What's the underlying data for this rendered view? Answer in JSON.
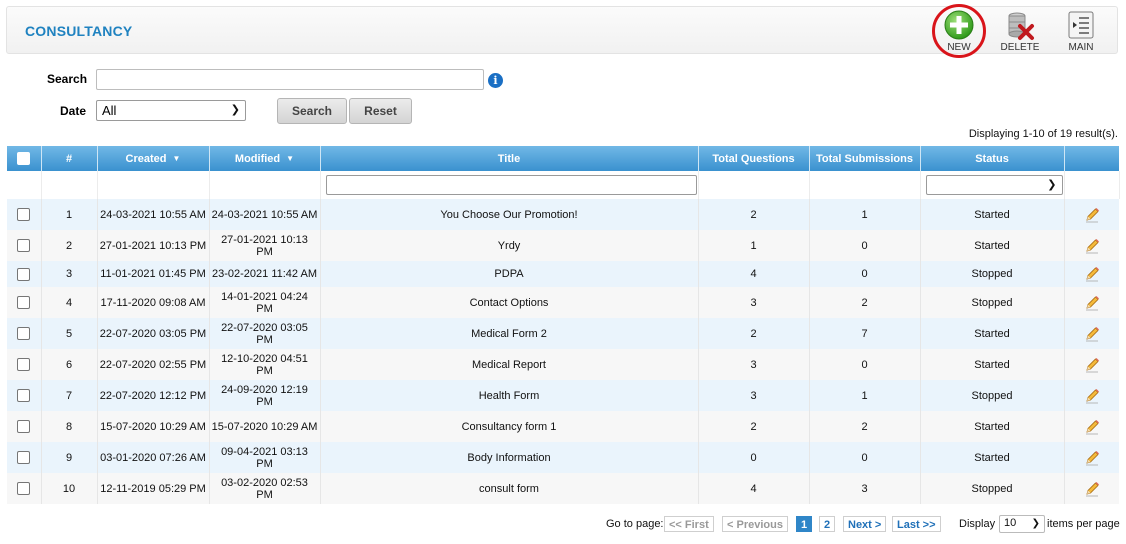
{
  "header": {
    "title": "CONSULTANCY",
    "new_label": "NEW",
    "delete_label": "DELETE",
    "main_label": "MAIN"
  },
  "search": {
    "search_label": "Search",
    "search_value": "",
    "date_label": "Date",
    "date_value": "All",
    "search_button": "Search",
    "reset_button": "Reset",
    "info_icon": "i"
  },
  "results_text": "Displaying 1-10 of 19 result(s).",
  "columns": {
    "number": "#",
    "created": "Created",
    "modified": "Modified",
    "title": "Title",
    "total_questions": "Total Questions",
    "total_submissions": "Total Submissions",
    "status": "Status"
  },
  "rows": [
    {
      "num": "1",
      "created": "24-03-2021 10:55 AM",
      "modified": "24-03-2021 10:55 AM",
      "title": "You Choose Our Promotion!",
      "questions": "2",
      "submissions": "1",
      "status": "Started"
    },
    {
      "num": "2",
      "created": "27-01-2021 10:13 PM",
      "modified": "27-01-2021 10:13 PM",
      "title": "Yrdy",
      "questions": "1",
      "submissions": "0",
      "status": "Started"
    },
    {
      "num": "3",
      "created": "11-01-2021 01:45 PM",
      "modified": "23-02-2021 11:42 AM",
      "title": "PDPA",
      "questions": "4",
      "submissions": "0",
      "status": "Stopped"
    },
    {
      "num": "4",
      "created": "17-11-2020 09:08 AM",
      "modified": "14-01-2021 04:24 PM",
      "title": "Contact Options",
      "questions": "3",
      "submissions": "2",
      "status": "Stopped"
    },
    {
      "num": "5",
      "created": "22-07-2020 03:05 PM",
      "modified": "22-07-2020 03:05 PM",
      "title": "Medical Form 2",
      "questions": "2",
      "submissions": "7",
      "status": "Started"
    },
    {
      "num": "6",
      "created": "22-07-2020 02:55 PM",
      "modified": "12-10-2020 04:51 PM",
      "title": "Medical Report",
      "questions": "3",
      "submissions": "0",
      "status": "Started"
    },
    {
      "num": "7",
      "created": "22-07-2020 12:12 PM",
      "modified": "24-09-2020 12:19 PM",
      "title": "Health Form",
      "questions": "3",
      "submissions": "1",
      "status": "Stopped"
    },
    {
      "num": "8",
      "created": "15-07-2020 10:29 AM",
      "modified": "15-07-2020 10:29 AM",
      "title": "Consultancy form 1",
      "questions": "2",
      "submissions": "2",
      "status": "Started"
    },
    {
      "num": "9",
      "created": "03-01-2020 07:26 AM",
      "modified": "09-04-2021 03:13 PM",
      "title": "Body Information",
      "questions": "0",
      "submissions": "0",
      "status": "Started"
    },
    {
      "num": "10",
      "created": "12-11-2019 05:29 PM",
      "modified": "03-02-2020 02:53 PM",
      "title": "consult form",
      "questions": "4",
      "submissions": "3",
      "status": "Stopped"
    }
  ],
  "pager": {
    "goto_label": "Go to page:",
    "first": "<< First",
    "previous": "< Previous",
    "pages": [
      "1",
      "2"
    ],
    "current_page": "1",
    "next": "Next >",
    "last": "Last >>",
    "display_label": "Display",
    "per_page_value": "10",
    "per_page_suffix": "items per page"
  },
  "colors": {
    "accent": "#1f82c0",
    "header_blue": "#3a91cf",
    "highlight_ring": "#d9141a",
    "row_alt": "#eaf4fc"
  },
  "icons": {
    "new": "plus-circle-icon",
    "delete": "database-delete-icon",
    "main": "list-icon",
    "edit": "pencil-icon",
    "sort": "sort-down-icon"
  }
}
